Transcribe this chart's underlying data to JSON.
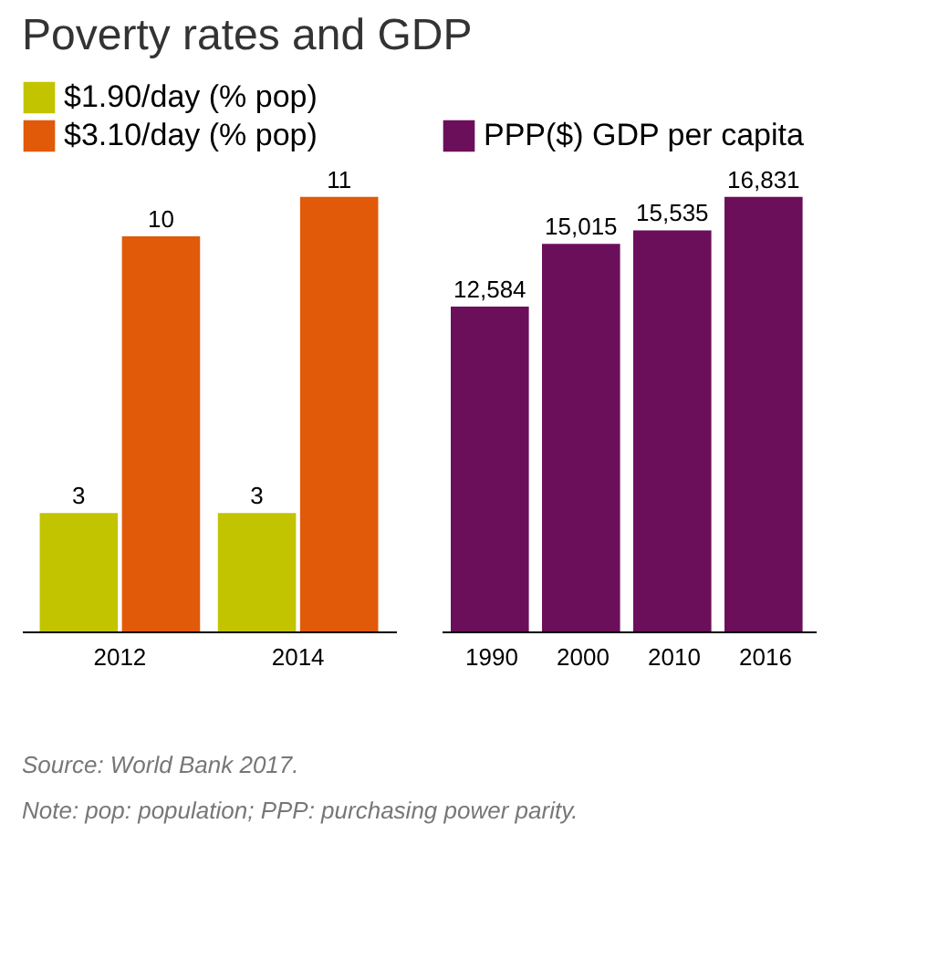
{
  "chart_data": [
    {
      "type": "bar",
      "title": "Poverty rates and GDP",
      "categories": [
        "2012",
        "2014"
      ],
      "legend": "top left",
      "data_labels": true,
      "grid": false,
      "series": [
        {
          "name": "$1.90/day (% pop)",
          "color": "#c2c400",
          "values": [
            3,
            3
          ]
        },
        {
          "name": "$3.10/day (% pop)",
          "color": "#e05a0a",
          "values": [
            10,
            11
          ]
        }
      ]
    },
    {
      "type": "bar",
      "categories": [
        "1990",
        "2000",
        "2010",
        "2016"
      ],
      "legend": "top left",
      "grid": false,
      "series": [
        {
          "name": "PPP($) GDP per capita",
          "color": "#6b0f5a",
          "values": [
            12584,
            15015,
            15535,
            16831
          ],
          "value_labels": [
            "12,584",
            "15,015",
            "15,535",
            "16,831"
          ]
        }
      ],
      "annotations": [
        "Source: World Bank 2017.",
        "Note: pop: population; PPP: purchasing power parity."
      ]
    }
  ]
}
